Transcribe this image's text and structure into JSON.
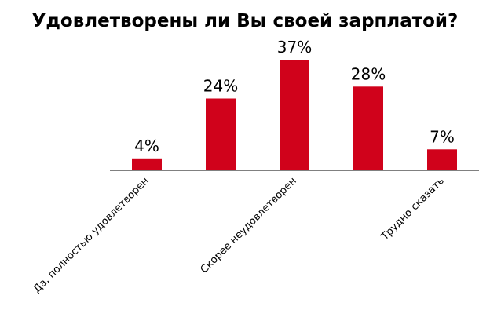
{
  "chart_data": {
    "type": "bar",
    "title": "Удовлетворены ли Вы своей зарплатой?",
    "categories": [
      "Да, полностью удовлетворен",
      "",
      "Скорее неудовлетворен",
      "",
      "Трудно сказать"
    ],
    "values": [
      4,
      24,
      37,
      28,
      7
    ],
    "value_labels": [
      "4%",
      "24%",
      "37%",
      "28%",
      "7%"
    ],
    "unit": "%",
    "ylim": [
      0,
      37
    ],
    "grid": false,
    "legend": "none",
    "colors": {
      "bar": "#d0021b",
      "axis": "#808080"
    }
  }
}
